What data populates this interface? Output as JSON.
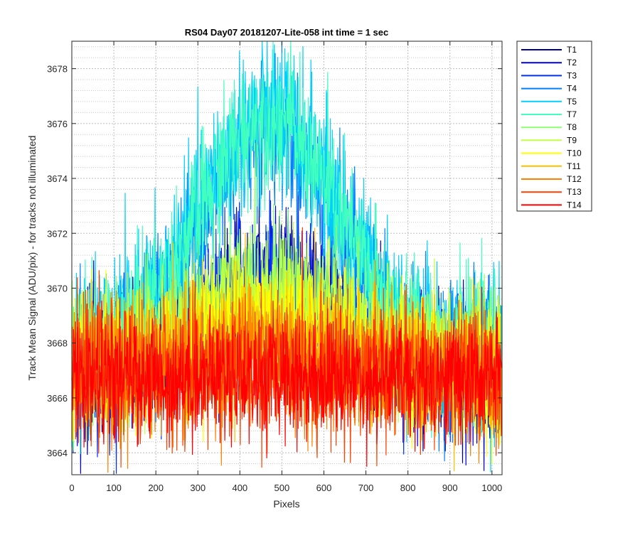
{
  "chart_data": {
    "type": "line",
    "title": "RS04 Day07 20181207-Lite-058 int time = 1 sec",
    "xlabel": "Pixels",
    "ylabel": "Track Mean Signal (ADU/pix) - for tracks not illuminated",
    "xlim": [
      0,
      1024
    ],
    "ylim": [
      3663.2,
      3679
    ],
    "x_ticks": [
      0,
      100,
      200,
      300,
      400,
      500,
      600,
      700,
      800,
      900,
      1000
    ],
    "y_ticks": [
      3664,
      3666,
      3668,
      3670,
      3672,
      3674,
      3676,
      3678
    ],
    "y_minor_step": 0.4,
    "grid": "on",
    "legend_position": "outside-top-right",
    "x_points": 1024,
    "series": [
      {
        "name": "T1",
        "color": "#00008f",
        "baseline": 3667.0,
        "bump": 3.0,
        "noise": 1.2
      },
      {
        "name": "T2",
        "color": "#0000df",
        "baseline": 3667.1,
        "bump": 3.1,
        "noise": 1.2
      },
      {
        "name": "T3",
        "color": "#0030ff",
        "baseline": 3667.1,
        "bump": 3.2,
        "noise": 1.2
      },
      {
        "name": "T4",
        "color": "#0080ff",
        "baseline": 3667.3,
        "bump": 8.5,
        "noise": 1.3
      },
      {
        "name": "T5",
        "color": "#00cfff",
        "baseline": 3667.5,
        "bump": 9.0,
        "noise": 1.4
      },
      {
        "name": "T7",
        "color": "#40ffbf",
        "baseline": 3667.6,
        "bump": 8.6,
        "noise": 1.3
      },
      {
        "name": "T8",
        "color": "#8fff70",
        "baseline": 3667.4,
        "bump": 2.8,
        "noise": 1.2
      },
      {
        "name": "T9",
        "color": "#bfff40",
        "baseline": 3667.3,
        "bump": 2.4,
        "noise": 1.2
      },
      {
        "name": "T10",
        "color": "#ffff00",
        "baseline": 3667.2,
        "bump": 1.9,
        "noise": 1.2
      },
      {
        "name": "T11",
        "color": "#ffbf00",
        "baseline": 3667.0,
        "bump": 1.1,
        "noise": 1.2
      },
      {
        "name": "T12",
        "color": "#ff8000",
        "baseline": 3666.9,
        "bump": 0.5,
        "noise": 1.2
      },
      {
        "name": "T13",
        "color": "#ff4000",
        "baseline": 3666.8,
        "bump": 0.3,
        "noise": 1.2
      },
      {
        "name": "T14",
        "color": "#ff0000",
        "baseline": 3666.7,
        "bump": 0.1,
        "noise": 1.1
      }
    ]
  }
}
